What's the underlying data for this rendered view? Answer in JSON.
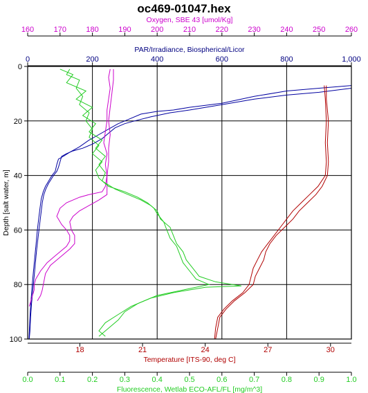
{
  "chart_data": {
    "type": "line",
    "title": "oc469-01047.hex",
    "y_axis": {
      "label": "Depth [salt water, m]",
      "range": [
        0,
        100
      ],
      "inverted": true,
      "ticks": [
        0,
        20,
        40,
        60,
        80,
        100
      ],
      "tick_labels": [
        "0",
        "20",
        "40",
        "60",
        "80",
        "100"
      ]
    },
    "x_axes": [
      {
        "id": "oxygen",
        "label": "Oxygen, SBE 43 [umol/Kg]",
        "position": "top",
        "range": [
          160,
          260
        ],
        "ticks": [
          160,
          170,
          180,
          190,
          200,
          210,
          220,
          230,
          240,
          250,
          260
        ],
        "tick_labels": [
          "160",
          "170",
          "180",
          "190",
          "200",
          "210",
          "220",
          "230",
          "240",
          "250",
          "260"
        ],
        "color": "#cc00cc"
      },
      {
        "id": "par",
        "label": "PAR/Irradiance, Biospherical/Licor",
        "position": "top",
        "range": [
          0,
          1000
        ],
        "ticks": [
          0,
          200,
          400,
          600,
          800,
          1000
        ],
        "tick_labels": [
          "0",
          "200",
          "400",
          "600",
          "800",
          "1,000"
        ],
        "color": "#000080"
      },
      {
        "id": "temperature",
        "label": "Temperature [ITS-90, deg C]",
        "position": "bottom",
        "range": [
          15.5,
          31
        ],
        "ticks": [
          18,
          21,
          24,
          27,
          30
        ],
        "tick_labels": [
          "18",
          "21",
          "24",
          "27",
          "30"
        ],
        "color": "#b00000"
      },
      {
        "id": "fluorescence",
        "label": "Fluorescence, Wetlab ECO-AFL/FL [mg/m^3]",
        "position": "bottom",
        "range": [
          0,
          1
        ],
        "ticks": [
          0,
          0.1,
          0.2,
          0.3,
          0.4,
          0.5,
          0.6,
          0.7,
          0.8,
          0.9,
          1.0
        ],
        "tick_labels": [
          "0.0",
          "0.1",
          "0.2",
          "0.3",
          "0.4",
          "0.5",
          "0.6",
          "0.7",
          "0.8",
          "0.9",
          "1.0"
        ],
        "color": "#22cc22"
      }
    ],
    "grid": true,
    "series": [
      {
        "axis": "par",
        "color": "#0000a0",
        "points": [
          [
            1000,
            7
          ],
          [
            900,
            8
          ],
          [
            800,
            9
          ],
          [
            700,
            11
          ],
          [
            600,
            13.5
          ],
          [
            500,
            15
          ],
          [
            450,
            16
          ],
          [
            400,
            16.5
          ],
          [
            350,
            17.5
          ],
          [
            310,
            19.5
          ],
          [
            280,
            21
          ],
          [
            250,
            23
          ],
          [
            220,
            25
          ],
          [
            190,
            27
          ],
          [
            160,
            29.5
          ],
          [
            130,
            31.5
          ],
          [
            110,
            33
          ],
          [
            95,
            34
          ],
          [
            90,
            36
          ],
          [
            85,
            38.5
          ],
          [
            75,
            40
          ],
          [
            65,
            42
          ],
          [
            55,
            44
          ],
          [
            48,
            46
          ],
          [
            42,
            48.5
          ],
          [
            38,
            52
          ],
          [
            34,
            56
          ],
          [
            30,
            60
          ],
          [
            26,
            65
          ],
          [
            22,
            70
          ],
          [
            18,
            75
          ],
          [
            14,
            80
          ],
          [
            11,
            85
          ],
          [
            8,
            90
          ],
          [
            6,
            95
          ],
          [
            4,
            100
          ]
        ]
      },
      {
        "axis": "par",
        "color": "#0000a0",
        "points": [
          [
            1000,
            8
          ],
          [
            900,
            9.5
          ],
          [
            800,
            10.5
          ],
          [
            700,
            12
          ],
          [
            600,
            14
          ],
          [
            500,
            16
          ],
          [
            440,
            17
          ],
          [
            380,
            18.5
          ],
          [
            330,
            20
          ],
          [
            300,
            21
          ],
          [
            270,
            22.5
          ],
          [
            250,
            24.5
          ],
          [
            230,
            26.5
          ],
          [
            200,
            28.5
          ],
          [
            170,
            30
          ],
          [
            140,
            31
          ],
          [
            120,
            32
          ],
          [
            105,
            33
          ],
          [
            100,
            35
          ],
          [
            95,
            37
          ],
          [
            90,
            38.5
          ],
          [
            80,
            40
          ],
          [
            72,
            41.5
          ],
          [
            64,
            43
          ],
          [
            56,
            45
          ],
          [
            50,
            47
          ],
          [
            45,
            50
          ],
          [
            41,
            54
          ],
          [
            37,
            58
          ],
          [
            33,
            62
          ],
          [
            28,
            67
          ],
          [
            24,
            72
          ],
          [
            20,
            77
          ],
          [
            16,
            82
          ],
          [
            12,
            87
          ],
          [
            9,
            92
          ],
          [
            7,
            97
          ],
          [
            5,
            100
          ]
        ]
      },
      {
        "axis": "temperature",
        "color": "#b00000",
        "points": [
          [
            29.8,
            7
          ],
          [
            29.8,
            12
          ],
          [
            29.9,
            20
          ],
          [
            29.85,
            28
          ],
          [
            29.9,
            35
          ],
          [
            29.85,
            40
          ],
          [
            29.6,
            44
          ],
          [
            29.3,
            47
          ],
          [
            28.9,
            50
          ],
          [
            28.5,
            53
          ],
          [
            28.2,
            56
          ],
          [
            27.8,
            59
          ],
          [
            27.4,
            62
          ],
          [
            27.1,
            65
          ],
          [
            26.9,
            68
          ],
          [
            26.8,
            71
          ],
          [
            26.6,
            74
          ],
          [
            26.4,
            77
          ],
          [
            26.3,
            80
          ],
          [
            25.9,
            83
          ],
          [
            25.4,
            86
          ],
          [
            25.0,
            89
          ],
          [
            24.7,
            92
          ],
          [
            24.6,
            96
          ],
          [
            24.5,
            100
          ]
        ]
      },
      {
        "axis": "temperature",
        "color": "#b00000",
        "points": [
          [
            29.7,
            7
          ],
          [
            29.75,
            12
          ],
          [
            29.8,
            20
          ],
          [
            29.75,
            28
          ],
          [
            29.8,
            35
          ],
          [
            29.75,
            40
          ],
          [
            29.4,
            44
          ],
          [
            29.0,
            47
          ],
          [
            28.6,
            50
          ],
          [
            28.2,
            53
          ],
          [
            27.9,
            56
          ],
          [
            27.6,
            59
          ],
          [
            27.3,
            62
          ],
          [
            27.0,
            65
          ],
          [
            26.7,
            68
          ],
          [
            26.5,
            71
          ],
          [
            26.3,
            74
          ],
          [
            26.2,
            77
          ],
          [
            26.1,
            80
          ],
          [
            25.8,
            83
          ],
          [
            25.3,
            86
          ],
          [
            24.9,
            89
          ],
          [
            24.6,
            92
          ],
          [
            24.5,
            96
          ],
          [
            24.45,
            100
          ]
        ]
      },
      {
        "axis": "oxygen",
        "color": "#cc00cc",
        "points": [
          [
            185.5,
            1
          ],
          [
            185,
            4
          ],
          [
            185.5,
            8
          ],
          [
            185,
            12
          ],
          [
            184.5,
            16
          ],
          [
            184.5,
            20
          ],
          [
            184,
            24
          ],
          [
            183.5,
            28
          ],
          [
            184.5,
            32
          ],
          [
            184,
            36
          ],
          [
            184.5,
            40
          ],
          [
            184,
            44
          ],
          [
            183,
            46
          ],
          [
            179,
            47
          ],
          [
            176,
            48
          ],
          [
            172,
            50
          ],
          [
            170,
            52
          ],
          [
            169,
            55
          ],
          [
            170.5,
            58
          ],
          [
            172,
            60
          ],
          [
            173,
            62
          ],
          [
            173,
            64
          ],
          [
            172,
            66
          ],
          [
            170,
            68
          ],
          [
            168,
            70
          ],
          [
            166,
            72
          ],
          [
            164,
            75
          ],
          [
            162.5,
            78
          ],
          [
            162,
            80
          ],
          [
            162,
            82
          ],
          [
            161.5,
            84
          ],
          [
            161,
            86
          ],
          [
            160.5,
            88
          ]
        ]
      },
      {
        "axis": "oxygen",
        "color": "#cc00cc",
        "points": [
          [
            186.5,
            1
          ],
          [
            186.5,
            5
          ],
          [
            186,
            10
          ],
          [
            185.5,
            15
          ],
          [
            185,
            20
          ],
          [
            185.5,
            25
          ],
          [
            185,
            30
          ],
          [
            185,
            35
          ],
          [
            184.5,
            40
          ],
          [
            184.5,
            44
          ],
          [
            184.5,
            47
          ],
          [
            182,
            49
          ],
          [
            179,
            51
          ],
          [
            176,
            53
          ],
          [
            174,
            55
          ],
          [
            173,
            57
          ],
          [
            173.5,
            60
          ],
          [
            174.5,
            62
          ],
          [
            174.5,
            65
          ],
          [
            173,
            67
          ],
          [
            171,
            69
          ],
          [
            169,
            71
          ],
          [
            167,
            73
          ],
          [
            165.5,
            76
          ],
          [
            165,
            79
          ],
          [
            164.5,
            82
          ],
          [
            164,
            84
          ],
          [
            163,
            86
          ]
        ]
      },
      {
        "axis": "fluorescence",
        "color": "#22cc22",
        "points": [
          [
            0.13,
            1
          ],
          [
            0.12,
            3
          ],
          [
            0.16,
            5
          ],
          [
            0.15,
            8
          ],
          [
            0.17,
            11
          ],
          [
            0.16,
            14
          ],
          [
            0.19,
            17
          ],
          [
            0.18,
            20
          ],
          [
            0.2,
            23
          ],
          [
            0.19,
            26
          ],
          [
            0.22,
            29
          ],
          [
            0.2,
            32
          ],
          [
            0.23,
            35
          ],
          [
            0.21,
            38
          ],
          [
            0.22,
            41
          ],
          [
            0.25,
            44
          ],
          [
            0.3,
            46
          ],
          [
            0.34,
            48
          ],
          [
            0.37,
            50
          ],
          [
            0.39,
            52
          ],
          [
            0.4,
            54
          ],
          [
            0.42,
            57
          ],
          [
            0.43,
            60
          ],
          [
            0.44,
            63
          ],
          [
            0.46,
            66
          ],
          [
            0.47,
            69
          ],
          [
            0.48,
            72
          ],
          [
            0.5,
            75
          ],
          [
            0.52,
            78
          ],
          [
            0.56,
            80
          ],
          [
            0.48,
            82
          ],
          [
            0.4,
            84
          ],
          [
            0.34,
            87
          ],
          [
            0.3,
            90
          ],
          [
            0.28,
            93
          ],
          [
            0.25,
            96
          ],
          [
            0.22,
            99
          ]
        ]
      },
      {
        "axis": "fluorescence",
        "color": "#22cc22",
        "points": [
          [
            0.1,
            1
          ],
          [
            0.14,
            3
          ],
          [
            0.12,
            6
          ],
          [
            0.18,
            9
          ],
          [
            0.15,
            12
          ],
          [
            0.2,
            15
          ],
          [
            0.17,
            18
          ],
          [
            0.21,
            21
          ],
          [
            0.19,
            24
          ],
          [
            0.23,
            27
          ],
          [
            0.21,
            30
          ],
          [
            0.24,
            33
          ],
          [
            0.22,
            36
          ],
          [
            0.24,
            39
          ],
          [
            0.23,
            42
          ],
          [
            0.27,
            45
          ],
          [
            0.31,
            47
          ],
          [
            0.35,
            49
          ],
          [
            0.38,
            51
          ],
          [
            0.4,
            53
          ],
          [
            0.41,
            56
          ],
          [
            0.44,
            59
          ],
          [
            0.45,
            62
          ],
          [
            0.46,
            65
          ],
          [
            0.48,
            68
          ],
          [
            0.49,
            71
          ],
          [
            0.51,
            74
          ],
          [
            0.53,
            77
          ],
          [
            0.58,
            79
          ],
          [
            0.66,
            80.5
          ],
          [
            0.55,
            81
          ],
          [
            0.45,
            83
          ],
          [
            0.38,
            85
          ],
          [
            0.32,
            88
          ],
          [
            0.28,
            91
          ],
          [
            0.24,
            94
          ],
          [
            0.22,
            97
          ],
          [
            0.24,
            99
          ]
        ]
      }
    ]
  }
}
